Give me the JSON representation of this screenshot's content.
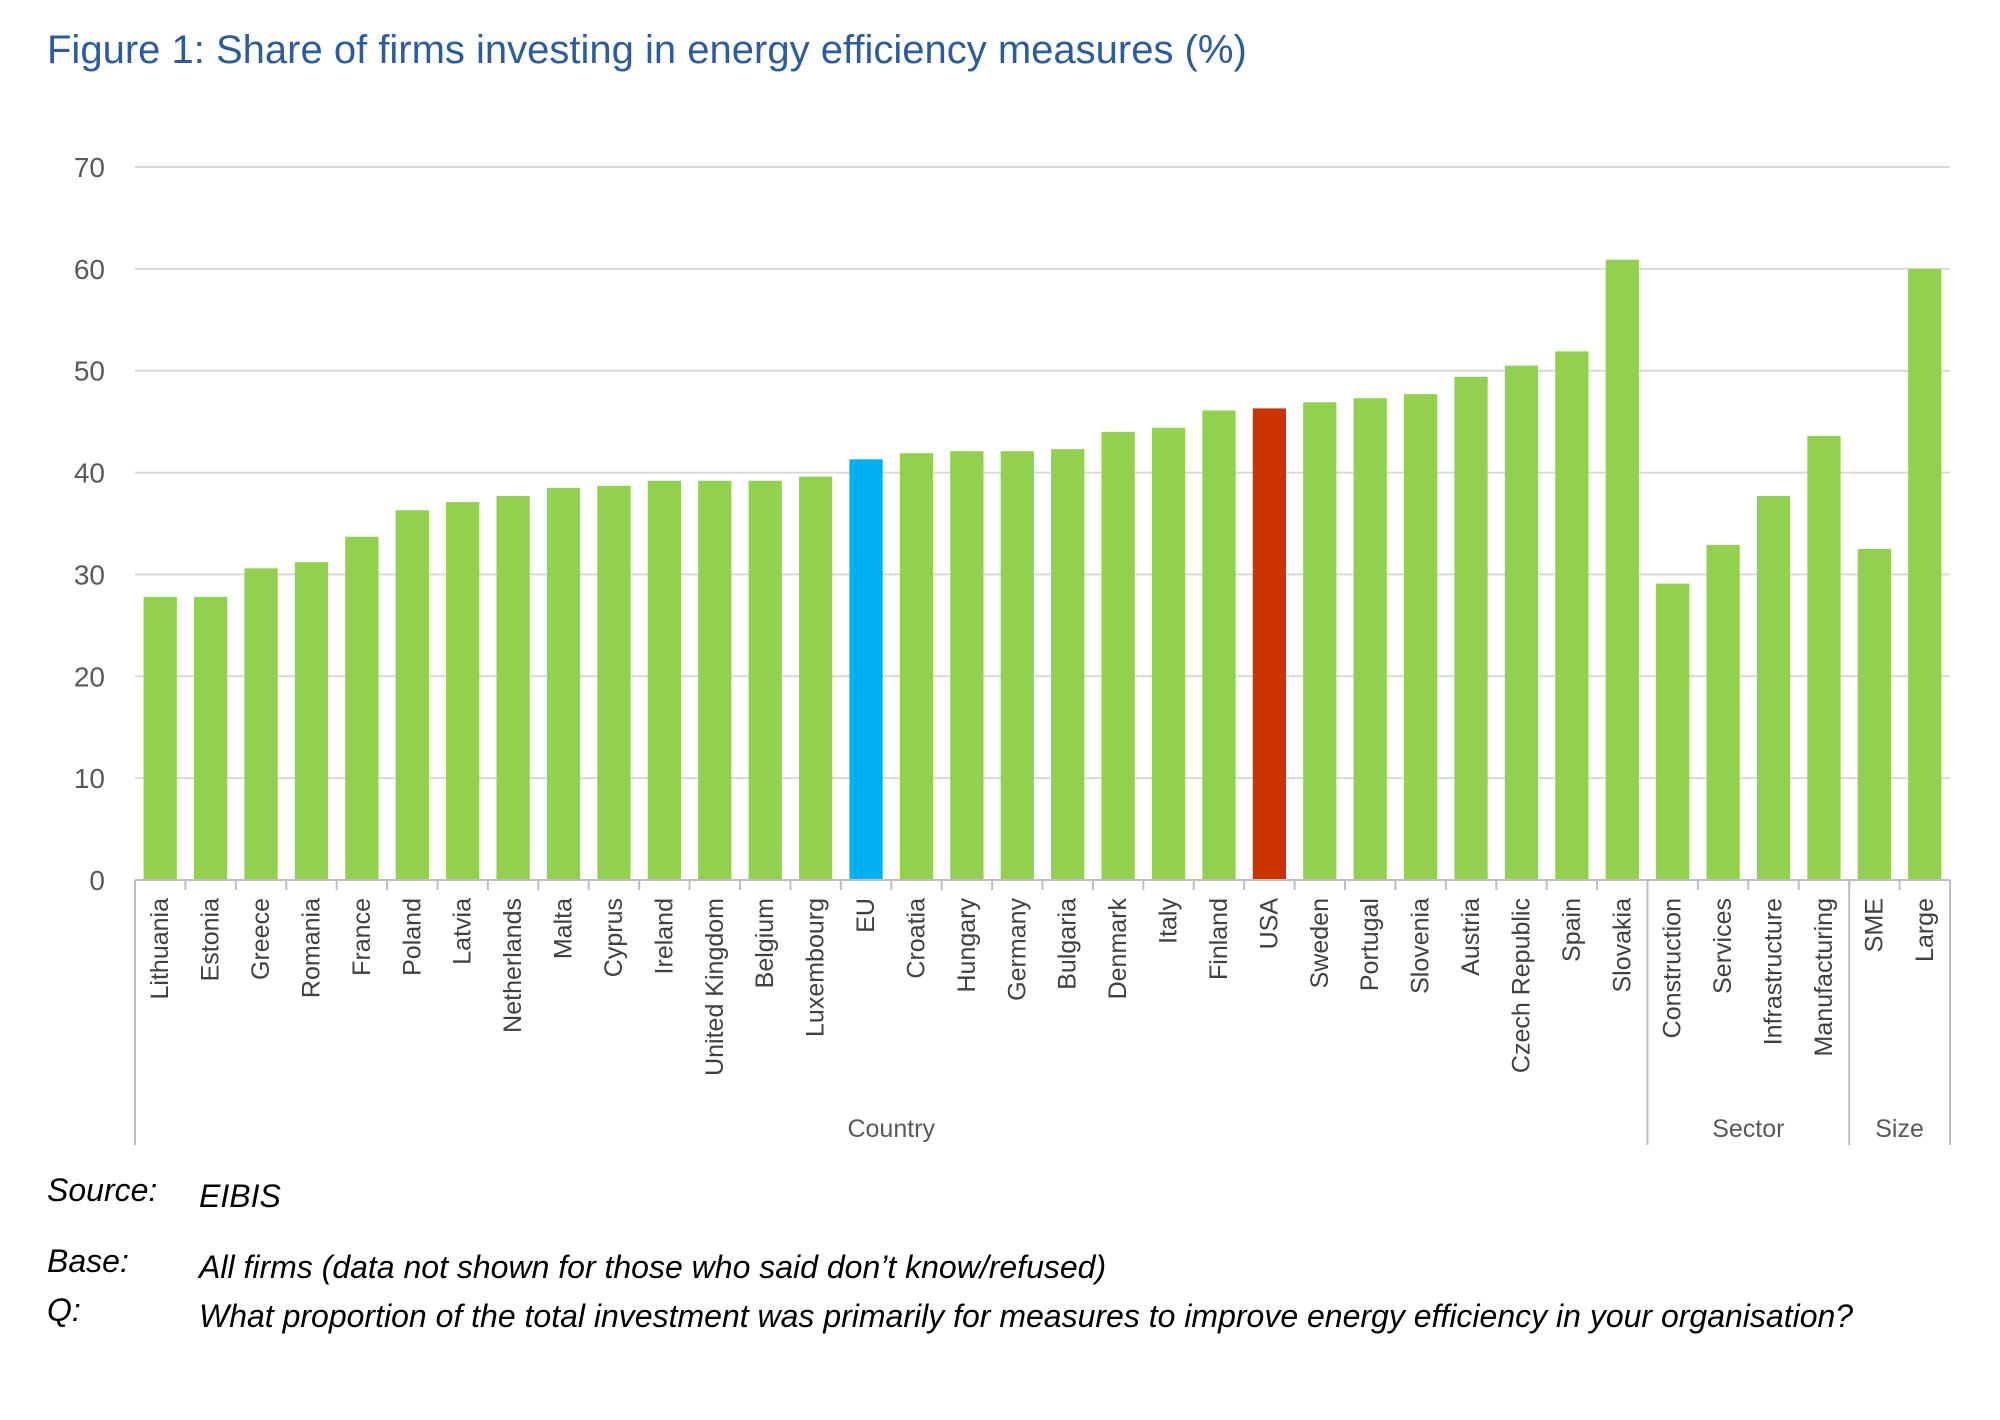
{
  "title": "Figure 1: Share of firms investing in energy efficiency measures (%)",
  "colors": {
    "default": "#92d050",
    "eu": "#00b0f0",
    "usa": "#cc3300",
    "grid": "#d9d9d9",
    "title": "#2e5c9a"
  },
  "chart_data": {
    "type": "bar",
    "title": "Figure 1: Share of firms investing in energy efficiency measures (%)",
    "xlabel": "",
    "ylabel": "",
    "ylim": [
      0,
      70
    ],
    "yticks": [
      0,
      10,
      20,
      30,
      40,
      50,
      60,
      70
    ],
    "grid": true,
    "categories": [
      "Lithuania",
      "Estonia",
      "Greece",
      "Romania",
      "France",
      "Poland",
      "Latvia",
      "Netherlands",
      "Malta",
      "Cyprus",
      "Ireland",
      "United Kingdom",
      "Belgium",
      "Luxembourg",
      "EU",
      "Croatia",
      "Hungary",
      "Germany",
      "Bulgaria",
      "Denmark",
      "Italy",
      "Finland",
      "USA",
      "Sweden",
      "Portugal",
      "Slovenia",
      "Austria",
      "Czech Republic",
      "Spain",
      "Slovakia",
      "Construction",
      "Services",
      "Infrastructure",
      "Manufacturing",
      "SME",
      "Large"
    ],
    "values": [
      27.8,
      27.8,
      30.6,
      31.2,
      33.7,
      36.3,
      37.1,
      37.7,
      38.5,
      38.7,
      39.2,
      39.2,
      39.2,
      39.6,
      41.3,
      41.9,
      42.1,
      42.1,
      42.3,
      44.0,
      44.4,
      46.1,
      46.3,
      46.9,
      47.3,
      47.7,
      49.4,
      50.5,
      51.9,
      60.9,
      29.1,
      32.9,
      37.7,
      43.6,
      32.5,
      60.0
    ],
    "highlight": {
      "EU": "eu",
      "USA": "usa"
    },
    "groups": [
      {
        "label": "Country",
        "count": 30
      },
      {
        "label": "Sector",
        "count": 4
      },
      {
        "label": "Size",
        "count": 2
      }
    ]
  },
  "notes": [
    {
      "key": "Source:",
      "value": "EIBIS"
    },
    {
      "key": "Base:",
      "value": "All firms (data not shown for those who said don’t know/refused)"
    },
    {
      "key": "Q:",
      "value": "What proportion of the total investment was primarily for measures to improve energy efficiency in your organisation?"
    }
  ]
}
